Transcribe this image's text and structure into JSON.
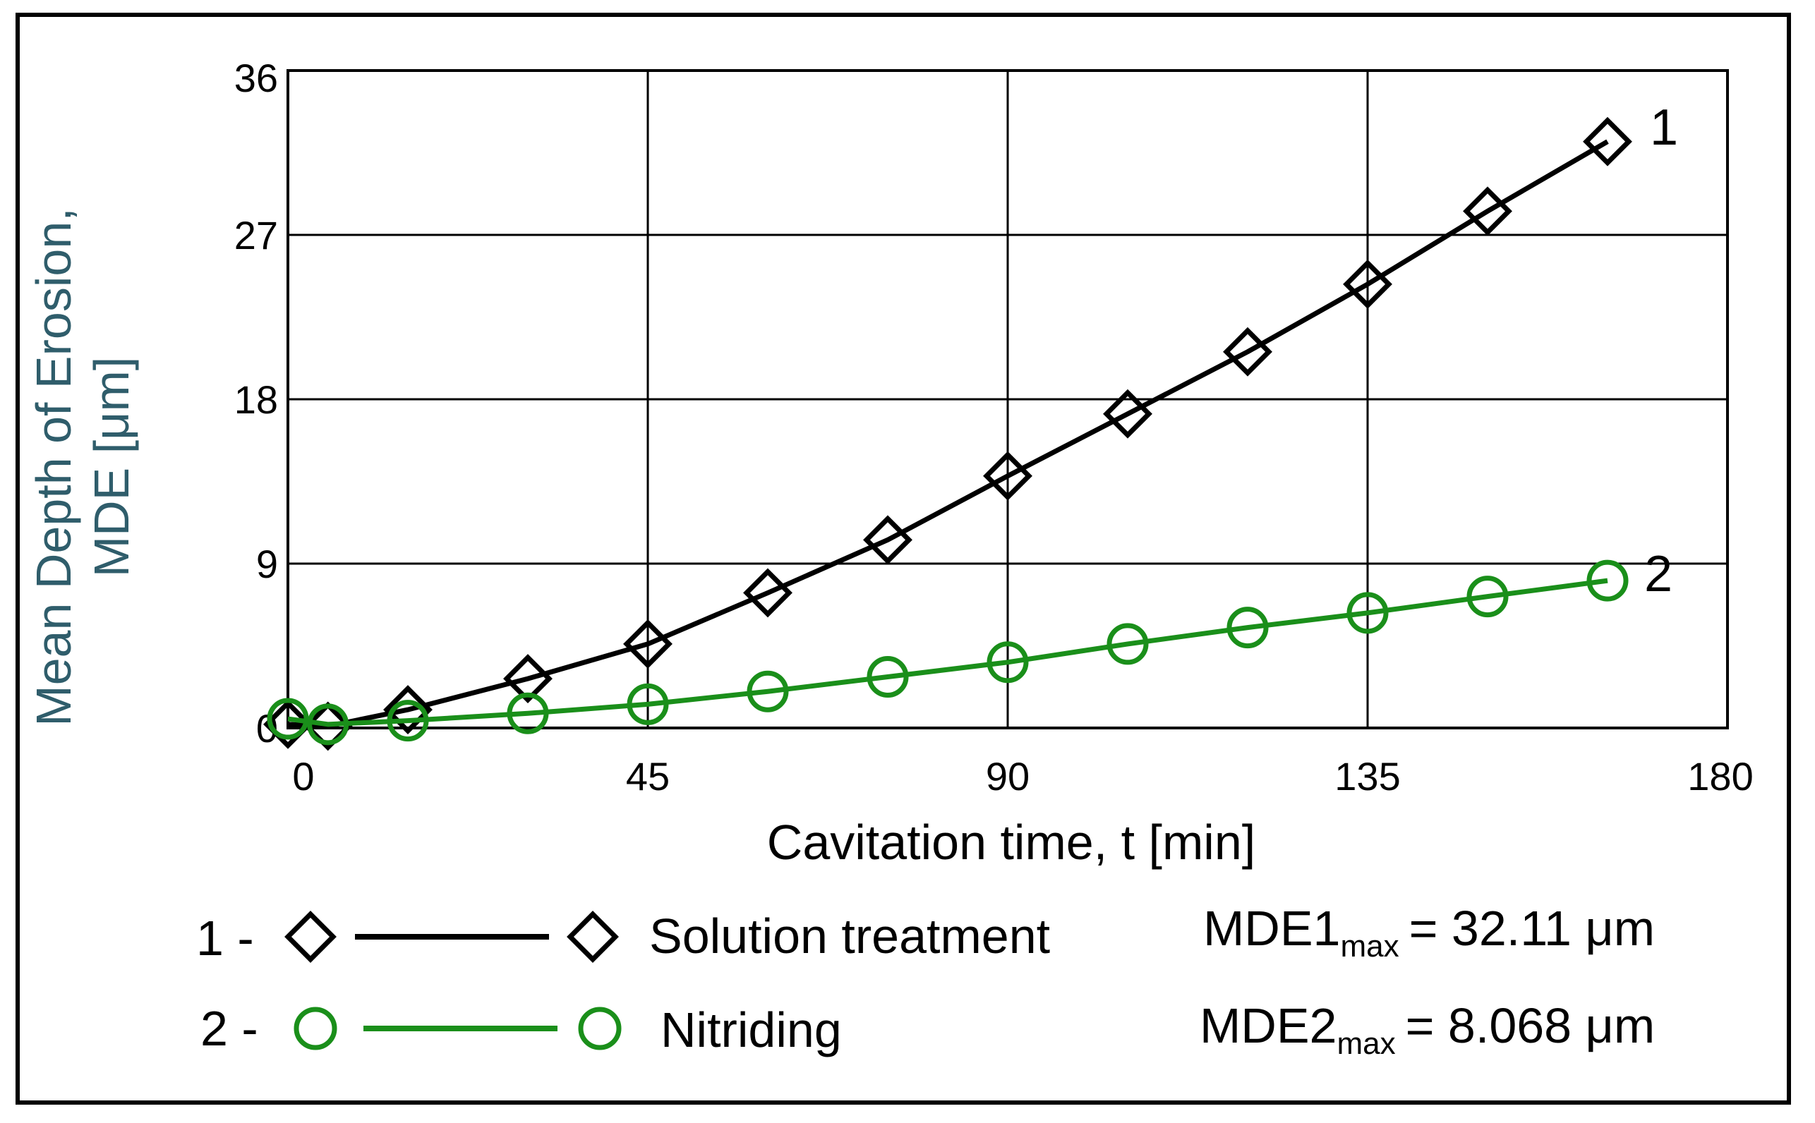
{
  "chart_data": {
    "type": "line",
    "xlabel": "Cavitation time, t [min]",
    "ylabel": [
      "Mean Depth of Erosion,",
      "MDE [μm]"
    ],
    "xlim": [
      0,
      180
    ],
    "ylim": [
      0,
      36
    ],
    "xticks": [
      "0",
      "45",
      "90",
      "135",
      "180"
    ],
    "yticks": [
      "0",
      "9",
      "18",
      "27",
      "36"
    ],
    "grid": true,
    "series": [
      {
        "name": "Solution treatment",
        "number": "1",
        "marker": "diamond",
        "color": "#000000",
        "x": [
          0,
          5,
          15,
          30,
          45,
          60,
          75,
          90,
          105,
          120,
          135,
          150,
          165
        ],
        "y": [
          0.2,
          0.1,
          1.0,
          2.7,
          4.6,
          7.4,
          10.3,
          13.8,
          17.2,
          20.6,
          24.3,
          28.3,
          32.11
        ]
      },
      {
        "name": "Nitriding",
        "number": "2",
        "marker": "circle",
        "color": "#1a8f1a",
        "x": [
          0,
          5,
          15,
          30,
          45,
          60,
          75,
          90,
          105,
          120,
          135,
          150,
          165
        ],
        "y": [
          0.5,
          0.2,
          0.4,
          0.8,
          1.3,
          2.0,
          2.8,
          3.6,
          4.6,
          5.5,
          6.3,
          7.2,
          8.068
        ]
      }
    ],
    "legend": [
      {
        "prefix": "1 -",
        "label": "Solution treatment",
        "stat_main": "MDE1",
        "stat_sub": "max",
        "stat_value": "= 32.11 μm"
      },
      {
        "prefix": "2 -",
        "label": "Nitriding",
        "stat_main": "MDE2",
        "stat_sub": "max",
        "stat_value": "= 8.068 μm"
      }
    ]
  }
}
